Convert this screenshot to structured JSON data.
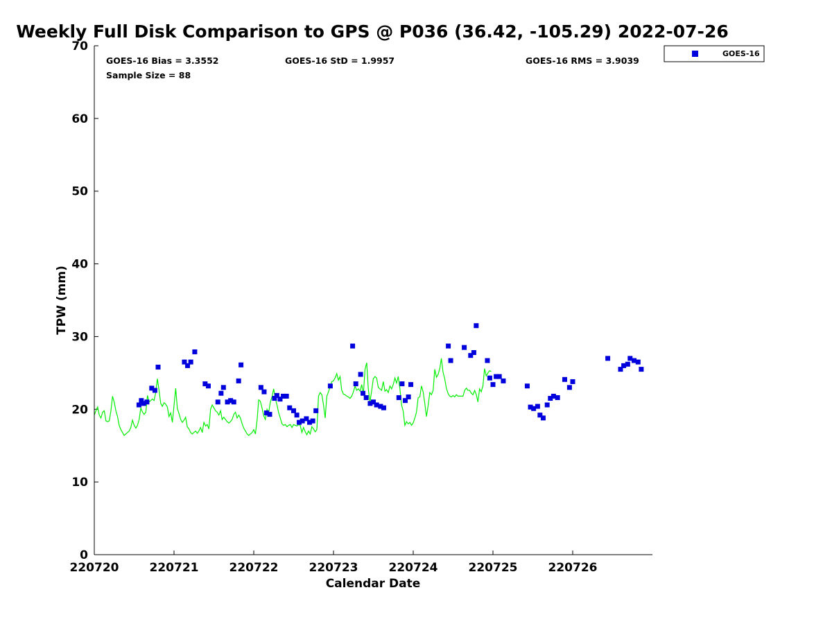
{
  "chart_data": {
    "type": "scatter",
    "title": "Weekly Full Disk Comparison to GPS @ P036 (36.42, -105.29) 2022-07-26",
    "xlabel": "Calendar Date",
    "ylabel": "TPW (mm)",
    "xlim": [
      0,
      7
    ],
    "ylim": [
      0,
      70
    ],
    "yticks": [
      0,
      10,
      20,
      30,
      40,
      50,
      60,
      70
    ],
    "xticks": [
      0,
      1,
      2,
      3,
      4,
      5,
      6
    ],
    "xtick_labels": [
      "220720",
      "220721",
      "220722",
      "220723",
      "220724",
      "220725",
      "220726"
    ],
    "legend": {
      "placement": "top-right outside",
      "entries": [
        "GOES-16"
      ]
    },
    "stats": {
      "bias": "GOES-16 Bias = 3.3552",
      "std": "GOES-16 StD = 1.9957",
      "rms": "GOES-16 RMS = 3.9039",
      "sample": "Sample Size = 88"
    },
    "series": [
      {
        "name": "GOES-16",
        "kind": "scatter",
        "color": "#0000dd",
        "points": [
          [
            0.56,
            20.6
          ],
          [
            0.59,
            21.2
          ],
          [
            0.62,
            20.8
          ],
          [
            0.66,
            21.0
          ],
          [
            0.72,
            22.9
          ],
          [
            0.76,
            22.6
          ],
          [
            0.8,
            25.8
          ],
          [
            1.13,
            26.5
          ],
          [
            1.17,
            26.0
          ],
          [
            1.21,
            26.5
          ],
          [
            1.26,
            27.9
          ],
          [
            1.39,
            23.5
          ],
          [
            1.43,
            23.2
          ],
          [
            1.55,
            21.0
          ],
          [
            1.59,
            22.2
          ],
          [
            1.62,
            23.0
          ],
          [
            1.67,
            21.0
          ],
          [
            1.71,
            21.2
          ],
          [
            1.75,
            21.0
          ],
          [
            1.81,
            23.9
          ],
          [
            1.84,
            26.1
          ],
          [
            2.09,
            23.0
          ],
          [
            2.13,
            22.4
          ],
          [
            2.16,
            19.5
          ],
          [
            2.2,
            19.3
          ],
          [
            2.26,
            21.5
          ],
          [
            2.29,
            21.9
          ],
          [
            2.33,
            21.4
          ],
          [
            2.37,
            21.8
          ],
          [
            2.41,
            21.8
          ],
          [
            2.45,
            20.2
          ],
          [
            2.5,
            19.8
          ],
          [
            2.54,
            19.2
          ],
          [
            2.57,
            18.2
          ],
          [
            2.61,
            18.4
          ],
          [
            2.66,
            18.7
          ],
          [
            2.7,
            18.2
          ],
          [
            2.74,
            18.4
          ],
          [
            2.78,
            19.8
          ],
          [
            2.96,
            23.2
          ],
          [
            3.24,
            28.7
          ],
          [
            3.28,
            23.5
          ],
          [
            3.34,
            24.8
          ],
          [
            3.37,
            22.2
          ],
          [
            3.41,
            21.6
          ],
          [
            3.46,
            20.8
          ],
          [
            3.5,
            21.0
          ],
          [
            3.54,
            20.6
          ],
          [
            3.59,
            20.4
          ],
          [
            3.63,
            20.2
          ],
          [
            3.82,
            21.6
          ],
          [
            3.86,
            23.5
          ],
          [
            3.9,
            21.2
          ],
          [
            3.94,
            21.7
          ],
          [
            3.97,
            23.4
          ],
          [
            4.44,
            28.7
          ],
          [
            4.47,
            26.7
          ],
          [
            4.64,
            28.5
          ],
          [
            4.72,
            27.4
          ],
          [
            4.76,
            27.8
          ],
          [
            4.79,
            31.5
          ],
          [
            4.93,
            26.7
          ],
          [
            4.96,
            24.3
          ],
          [
            5.0,
            23.4
          ],
          [
            5.04,
            24.5
          ],
          [
            5.08,
            24.5
          ],
          [
            5.13,
            23.9
          ],
          [
            5.43,
            23.2
          ],
          [
            5.47,
            20.3
          ],
          [
            5.51,
            20.1
          ],
          [
            5.56,
            20.4
          ],
          [
            5.59,
            19.2
          ],
          [
            5.63,
            18.8
          ],
          [
            5.68,
            20.6
          ],
          [
            5.72,
            21.5
          ],
          [
            5.76,
            21.8
          ],
          [
            5.81,
            21.6
          ],
          [
            5.9,
            24.1
          ],
          [
            5.96,
            23.0
          ],
          [
            6.0,
            23.8
          ],
          [
            6.44,
            27.0
          ],
          [
            6.6,
            25.5
          ],
          [
            6.64,
            26.0
          ],
          [
            6.69,
            26.2
          ],
          [
            6.72,
            27.0
          ],
          [
            6.77,
            26.7
          ],
          [
            6.82,
            26.5
          ],
          [
            6.86,
            25.5
          ]
        ]
      },
      {
        "name": "",
        "kind": "line",
        "color": "#00ee00",
        "x_start": 0,
        "x_step": 0.02083,
        "y": [
          19.2,
          19.8,
          20.3,
          19.2,
          18.8,
          19.6,
          19.8,
          18.4,
          18.3,
          18.4,
          19.8,
          21.8,
          21.0,
          19.8,
          19.0,
          17.8,
          17.2,
          16.8,
          16.4,
          16.6,
          16.8,
          17.0,
          17.5,
          18.5,
          17.8,
          17.4,
          17.8,
          18.6,
          20.2,
          19.6,
          19.3,
          19.6,
          21.9,
          21.0,
          21.2,
          21.4,
          21.2,
          22.3,
          24.2,
          22.6,
          20.8,
          20.4,
          20.9,
          20.7,
          20.3,
          19.0,
          19.5,
          18.2,
          20.5,
          22.9,
          20.1,
          19.4,
          18.6,
          18.2,
          18.5,
          18.9,
          17.6,
          17.3,
          16.8,
          16.6,
          16.8,
          17.0,
          16.7,
          17.0,
          17.5,
          16.8,
          18.2,
          17.7,
          17.9,
          17.3,
          20.0,
          20.6,
          20.2,
          19.8,
          19.6,
          19.2,
          19.8,
          18.6,
          18.9,
          18.6,
          18.3,
          18.1,
          18.3,
          18.6,
          19.3,
          19.6,
          18.8,
          19.2,
          18.8,
          18.0,
          17.4,
          17.0,
          16.6,
          16.4,
          16.6,
          16.8,
          17.2,
          16.6,
          18.5,
          21.3,
          21.1,
          20.2,
          19.1,
          18.6,
          20.0,
          19.5,
          21.0,
          21.7,
          22.8,
          21.5,
          20.6,
          19.5,
          18.8,
          18.0,
          17.8,
          17.9,
          17.6,
          17.8,
          17.9,
          17.5,
          17.9,
          17.8,
          17.7,
          17.9,
          17.8,
          16.8,
          17.5,
          16.9,
          16.5,
          17.0,
          16.6,
          17.6,
          17.3,
          16.9,
          17.2,
          21.8,
          22.3,
          22.0,
          20.6,
          18.8,
          21.8,
          22.4,
          23.1,
          23.8,
          23.9,
          24.3,
          24.9,
          24.0,
          24.5,
          22.6,
          22.1,
          22.0,
          21.8,
          21.7,
          21.5,
          21.8,
          22.4,
          23.2,
          22.6,
          22.8,
          22.5,
          23.4,
          22.1,
          25.5,
          26.4,
          22.8,
          21.0,
          22.5,
          24.2,
          24.5,
          24.3,
          23.0,
          22.8,
          22.6,
          23.8,
          22.5,
          22.7,
          22.3,
          23.2,
          22.8,
          23.4,
          24.3,
          23.6,
          24.5,
          22.8,
          20.6,
          19.7,
          17.8,
          18.3,
          18.0,
          18.2,
          17.8,
          18.1,
          18.8,
          19.6,
          21.6,
          21.7,
          23.2,
          22.4,
          20.8,
          19.0,
          20.5,
          22.3,
          22.0,
          22.6,
          25.5,
          24.4,
          24.8,
          25.6,
          27.0,
          25.1,
          24.2,
          22.9,
          22.2,
          21.8,
          21.7,
          21.9,
          21.7,
          22.0,
          21.8,
          21.8,
          21.8,
          21.8,
          22.6,
          22.9,
          22.6,
          22.6,
          22.2,
          22.0,
          22.6,
          22.0,
          21.0,
          22.8,
          22.4,
          23.2,
          25.6,
          24.6,
          25.0,
          25.3,
          25.2
        ]
      }
    ]
  }
}
